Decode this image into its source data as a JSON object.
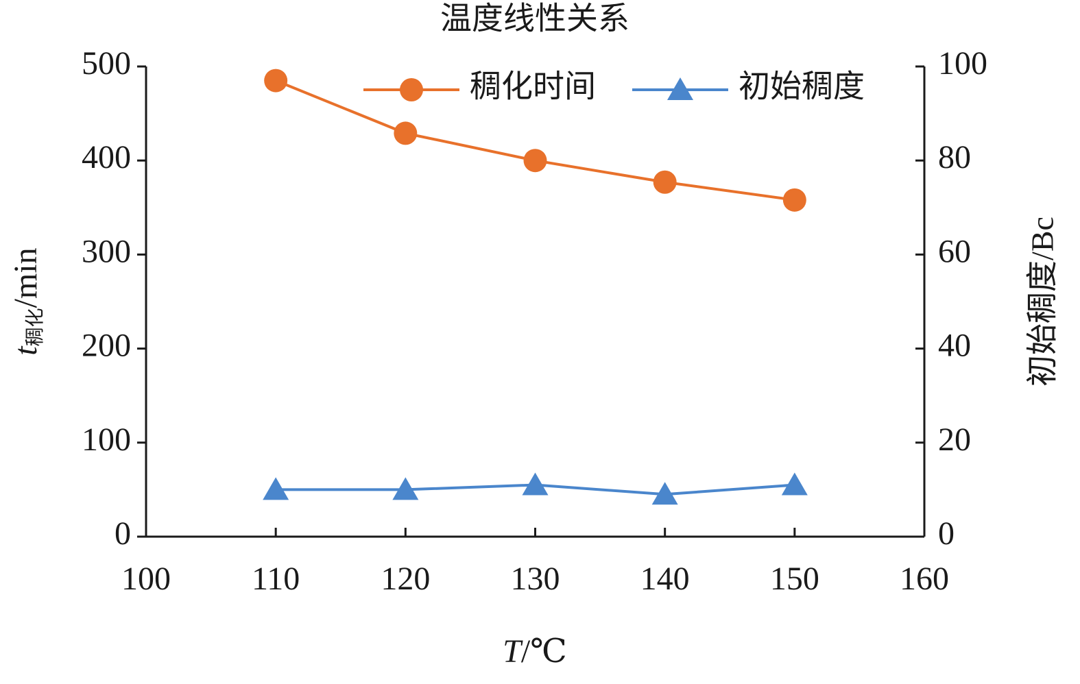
{
  "chart_data": {
    "type": "line",
    "title": "温度线性关系",
    "xlabel": [
      "T",
      "/℃"
    ],
    "ylabel": [
      "t",
      "稠化",
      "/min"
    ],
    "y2label": "初始稠度/Bc",
    "x": [
      110,
      120,
      130,
      140,
      150
    ],
    "series": [
      {
        "name": "稠化时间",
        "color": "#e8712b",
        "marker": "circle",
        "values": [
          485,
          429,
          400,
          377,
          358
        ]
      },
      {
        "name": "初始稠度",
        "color": "#4a86cc",
        "marker": "triangle",
        "axis": "y2",
        "values": [
          10,
          10,
          11,
          9,
          11
        ]
      }
    ],
    "xlim": [
      100,
      160
    ],
    "xticks": [
      100,
      110,
      120,
      130,
      140,
      150,
      160
    ],
    "ylim": [
      0,
      500
    ],
    "yticks": [
      0,
      100,
      200,
      300,
      400,
      500
    ],
    "y2lim": [
      0,
      100
    ],
    "y2ticks": [
      0,
      20,
      40,
      60,
      80,
      100
    ],
    "grid": false,
    "legend": "top"
  }
}
